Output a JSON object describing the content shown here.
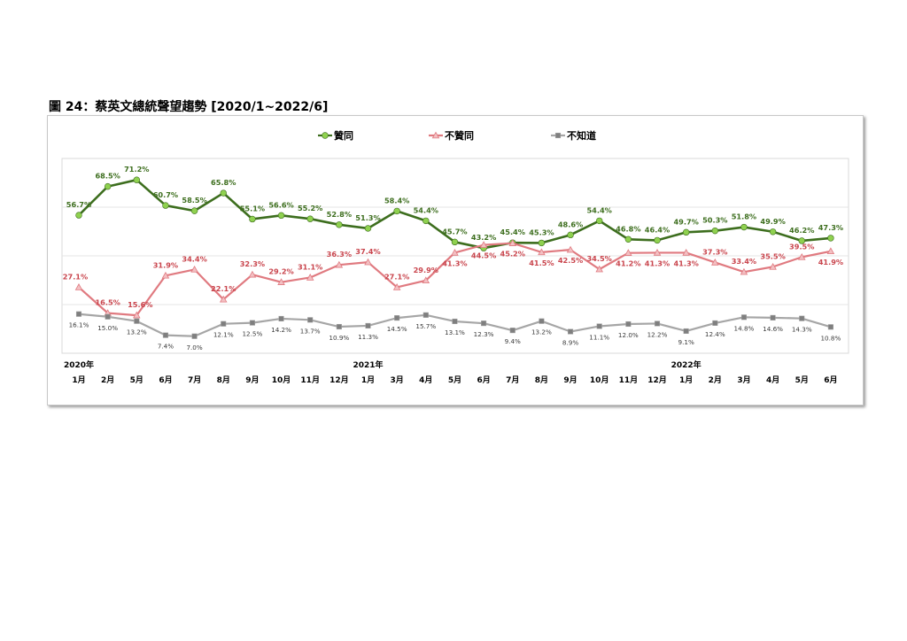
{
  "figure": {
    "title": "圖 24：蔡英文總統聲望趨勢  [2020/1~2022/6]"
  },
  "chart_data": {
    "type": "line",
    "categories": [
      "1月",
      "2月",
      "5月",
      "6月",
      "7月",
      "8月",
      "9月",
      "10月",
      "11月",
      "12月",
      "1月",
      "3月",
      "4月",
      "5月",
      "6月",
      "7月",
      "8月",
      "9月",
      "10月",
      "11月",
      "12月",
      "1月",
      "2月",
      "3月",
      "4月",
      "5月",
      "6月"
    ],
    "year_labels": [
      {
        "index": 0,
        "label": "2020年"
      },
      {
        "index": 10,
        "label": "2021年"
      },
      {
        "index": 21,
        "label": "2022年"
      }
    ],
    "ylim": [
      0,
      80
    ],
    "grid": true,
    "legend_position": "top",
    "series": [
      {
        "name": "贊同",
        "color": "#3d6e1e",
        "marker_color": "#8fd14f",
        "label_color": "#3d6e1e",
        "marker": "circle",
        "values": [
          56.7,
          68.5,
          71.2,
          60.7,
          58.5,
          65.8,
          55.1,
          56.6,
          55.2,
          52.8,
          51.3,
          58.4,
          54.4,
          45.7,
          43.2,
          45.4,
          45.3,
          48.6,
          54.4,
          46.8,
          46.4,
          49.7,
          50.3,
          51.8,
          49.9,
          46.2,
          47.3
        ],
        "labels": [
          "56.7%",
          "68.5%",
          "71.2%",
          "60.7%",
          "58.5%",
          "65.8%",
          "55.1%",
          "56.6%",
          "55.2%",
          "52.8%",
          "51.3%",
          "58.4%",
          "54.4%",
          "45.7%",
          "43.2%",
          "45.4%",
          "45.3%",
          "48.6%",
          "54.4%",
          "46.8%",
          "46.4%",
          "49.7%",
          "50.3%",
          "51.8%",
          "49.9%",
          "46.2%",
          "47.3%"
        ]
      },
      {
        "name": "不贊同",
        "color": "#e07a80",
        "marker_color": "#f3c0c3",
        "label_color": "#c9454d",
        "marker": "triangle",
        "values": [
          27.1,
          16.5,
          15.6,
          31.9,
          34.4,
          22.1,
          32.3,
          29.2,
          31.1,
          36.3,
          37.4,
          27.1,
          29.9,
          41.3,
          44.5,
          45.2,
          41.5,
          42.5,
          34.5,
          41.2,
          41.3,
          41.3,
          37.3,
          33.4,
          35.5,
          39.5,
          41.9
        ],
        "labels": [
          "27.1%",
          "16.5%",
          "15.6%",
          "31.9%",
          "34.4%",
          "22.1%",
          "32.3%",
          "29.2%",
          "31.1%",
          "36.3%",
          "37.4%",
          "27.1%",
          "29.9%",
          "41.3%",
          "44.5%",
          "45.2%",
          "41.5%",
          "42.5%",
          "34.5%",
          "41.2%",
          "41.3%",
          "41.3%",
          "37.3%",
          "33.4%",
          "35.5%",
          "39.5%",
          "41.9%"
        ]
      },
      {
        "name": "不知道",
        "color": "#a6a6a6",
        "marker_color": "#7f7f7f",
        "label_color": "#3a3a3a",
        "marker": "square",
        "values": [
          16.1,
          15.0,
          13.2,
          7.4,
          7.0,
          12.1,
          12.5,
          14.2,
          13.7,
          10.9,
          11.3,
          14.5,
          15.7,
          13.1,
          12.3,
          9.4,
          13.2,
          8.9,
          11.1,
          12.0,
          12.2,
          9.1,
          12.4,
          14.8,
          14.6,
          14.3,
          10.8
        ],
        "labels": [
          "16.1%",
          "15.0%",
          "13.2%",
          "7.4%",
          "7.0%",
          "12.1%",
          "12.5%",
          "14.2%",
          "13.7%",
          "10.9%",
          "11.3%",
          "14.5%",
          "15.7%",
          "13.1%",
          "12.3%",
          "9.4%",
          "13.2%",
          "8.9%",
          "11.1%",
          "12.0%",
          "12.2%",
          "9.1%",
          "12.4%",
          "14.8%",
          "14.6%",
          "14.3%",
          "10.8%"
        ]
      }
    ]
  }
}
